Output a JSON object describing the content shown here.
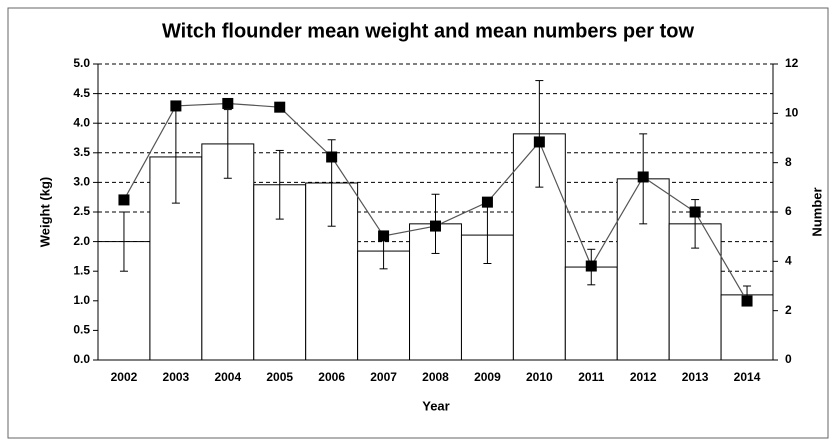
{
  "chart_data": {
    "type": "bar",
    "title": "Witch flounder mean weight and mean numbers per tow",
    "xlabel": "Year",
    "ylabel": "Weight (kg)",
    "y2label": "Number",
    "categories": [
      "2002",
      "2003",
      "2004",
      "2005",
      "2006",
      "2007",
      "2008",
      "2009",
      "2010",
      "2011",
      "2012",
      "2013",
      "2014"
    ],
    "series": [
      {
        "type": "bar",
        "color": "#ffffff",
        "values": [
          2.0,
          3.43,
          3.65,
          2.96,
          2.99,
          1.84,
          2.3,
          2.11,
          3.82,
          1.57,
          3.06,
          2.3,
          1.1
        ],
        "errors": [
          0.5,
          0.78,
          0.58,
          0.58,
          0.73,
          0.3,
          0.5,
          0.48,
          0.9,
          0.3,
          0.76,
          0.41,
          0.15
        ]
      },
      {
        "type": "line",
        "axis": "y2",
        "color": "#000000",
        "values": [
          6.49,
          10.3,
          10.4,
          10.25,
          8.23,
          5.03,
          5.43,
          6.4,
          8.84,
          3.81,
          7.42,
          6.0,
          2.39
        ]
      }
    ],
    "ylim": [
      0,
      5
    ],
    "yticks": [
      {
        "value": 0,
        "label": "0.0"
      },
      {
        "value": 0.5,
        "label": "0.5"
      },
      {
        "value": 1,
        "label": "1.0"
      },
      {
        "value": 1.5,
        "label": "1.5"
      },
      {
        "value": 2,
        "label": "2.0"
      },
      {
        "value": 2.5,
        "label": "2.5"
      },
      {
        "value": 3,
        "label": "3.0"
      },
      {
        "value": 3.5,
        "label": "3.5"
      },
      {
        "value": 4,
        "label": "4.0"
      },
      {
        "value": 4.5,
        "label": "4.5"
      },
      {
        "value": 5,
        "label": "5.0"
      }
    ],
    "y2lim": [
      0,
      12
    ],
    "y2ticks": [
      0,
      2,
      4,
      6,
      8,
      10,
      12
    ],
    "grid": true
  }
}
